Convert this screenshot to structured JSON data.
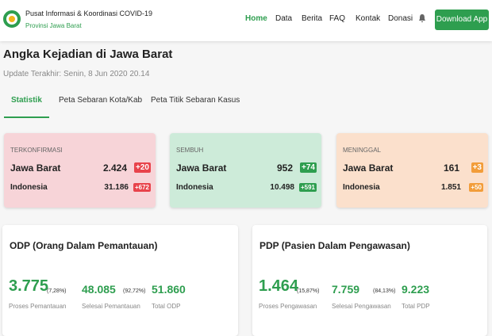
{
  "header": {
    "title": "Pusat Informasi & Koordinasi COVID-19",
    "subtitle": "Provinsi Jawa Barat",
    "nav": [
      "Home",
      "Data",
      "Berita",
      "FAQ",
      "Kontak",
      "Donasi"
    ],
    "button": "Download App"
  },
  "page": {
    "title": "Angka Kejadian di Jawa Barat",
    "updated": "Update Terakhir: Senin, 8 Jun 2020 20.14",
    "tabs": [
      "Statistik",
      "Peta Sebaran Kota/Kab",
      "Peta Titik Sebaran Kasus"
    ]
  },
  "cards": [
    {
      "label": "TERKONFIRMASI",
      "rows": [
        {
          "region": "Jawa Barat",
          "value": "2.424",
          "delta": "+20"
        },
        {
          "region": "Indonesia",
          "value": "31.186",
          "delta": "+672"
        }
      ]
    },
    {
      "label": "SEMBUH",
      "rows": [
        {
          "region": "Jawa Barat",
          "value": "952",
          "delta": "+74"
        },
        {
          "region": "Indonesia",
          "value": "10.498",
          "delta": "+591"
        }
      ]
    },
    {
      "label": "MENINGGAL",
      "rows": [
        {
          "region": "Jawa Barat",
          "value": "161",
          "delta": "+3"
        },
        {
          "region": "Indonesia",
          "value": "1.851",
          "delta": "+50"
        }
      ]
    }
  ],
  "panels": [
    {
      "title": "ODP (Orang Dalam Pemantauan)",
      "stats": [
        {
          "value": "3.775",
          "percent": "(7,28%)",
          "label": "Proses Pemantauan"
        },
        {
          "value": "48.085",
          "percent": "(92,72%)",
          "label": "Selesai Pemantauan"
        },
        {
          "value": "51.860",
          "label": "Total ODP"
        }
      ]
    },
    {
      "title": "PDP (Pasien Dalam Pengawasan)",
      "stats": [
        {
          "value": "1.464",
          "percent": "(15,87%)",
          "label": "Proses Pengawasan"
        },
        {
          "value": "7.759",
          "percent": "(84,13%)",
          "label": "Selesai Pengawasan"
        },
        {
          "value": "9.223",
          "label": "Total PDP"
        }
      ]
    }
  ]
}
